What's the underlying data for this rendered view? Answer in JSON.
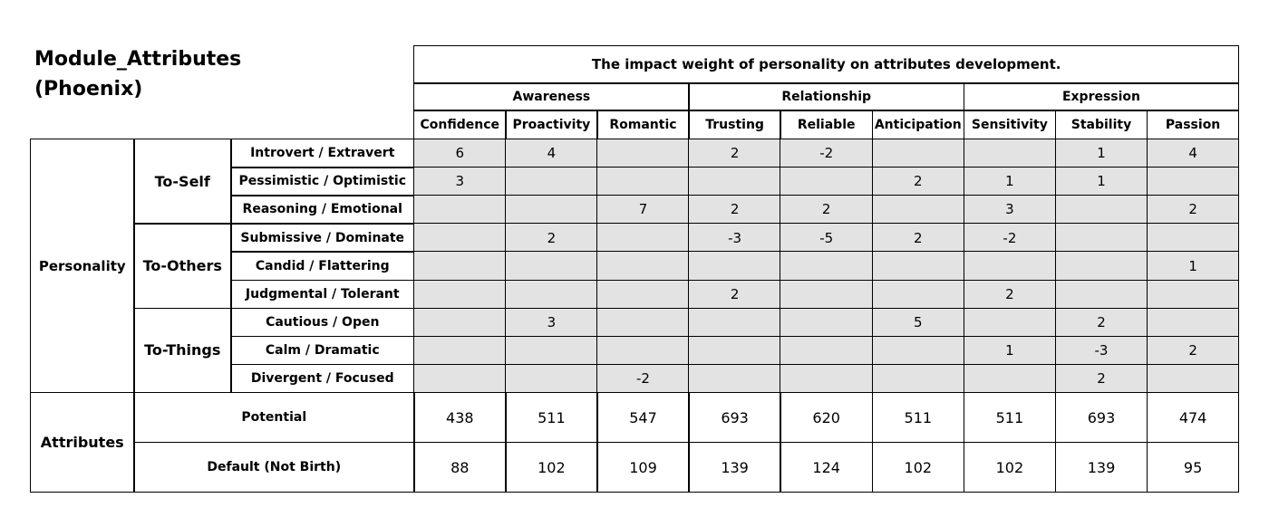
{
  "title": [
    "Module_Attributes",
    "(Phoenix)"
  ],
  "header": {
    "title": "The impact weight of personality on attributes development.",
    "groups": [
      {
        "name": "Awareness",
        "columns": [
          "Confidence",
          "Proactivity",
          "Romantic"
        ]
      },
      {
        "name": "Relationship",
        "columns": [
          "Trusting",
          "Reliable",
          "Anticipation"
        ]
      },
      {
        "name": "Expression",
        "columns": [
          "Sensitivity",
          "Stability",
          "Passion"
        ]
      }
    ]
  },
  "personality": {
    "label": "Personality",
    "groups": [
      {
        "name": "To-Self",
        "rows": [
          {
            "label": "Introvert / Extravert",
            "values": [
              6,
              4,
              null,
              2,
              -2,
              null,
              null,
              1,
              4
            ]
          },
          {
            "label": "Pessimistic / Optimistic",
            "values": [
              3,
              null,
              null,
              null,
              null,
              2,
              1,
              1,
              null
            ]
          },
          {
            "label": "Reasoning / Emotional",
            "values": [
              null,
              null,
              7,
              2,
              2,
              null,
              3,
              null,
              2
            ]
          }
        ]
      },
      {
        "name": "To-Others",
        "rows": [
          {
            "label": "Submissive / Dominate",
            "values": [
              null,
              2,
              null,
              -3,
              -5,
              2,
              -2,
              null,
              null
            ]
          },
          {
            "label": "Candid / Flattering",
            "values": [
              null,
              null,
              null,
              null,
              null,
              null,
              null,
              null,
              1
            ]
          },
          {
            "label": "Judgmental / Tolerant",
            "values": [
              null,
              null,
              null,
              2,
              null,
              null,
              2,
              null,
              null
            ]
          }
        ]
      },
      {
        "name": "To-Things",
        "rows": [
          {
            "label": "Cautious / Open",
            "values": [
              null,
              3,
              null,
              null,
              null,
              5,
              null,
              2,
              null
            ]
          },
          {
            "label": "Calm / Dramatic",
            "values": [
              null,
              null,
              null,
              null,
              null,
              null,
              1,
              -3,
              2
            ]
          },
          {
            "label": "Divergent / Focused",
            "values": [
              null,
              null,
              -2,
              null,
              null,
              null,
              null,
              2,
              null
            ]
          }
        ]
      }
    ]
  },
  "attributes": {
    "label": "Attributes",
    "rows": [
      {
        "label": "Potential",
        "values": [
          438,
          511,
          547,
          693,
          620,
          511,
          511,
          693,
          474
        ]
      },
      {
        "label": "Default (Not Birth)",
        "values": [
          88,
          102,
          109,
          139,
          124,
          102,
          102,
          139,
          95
        ]
      }
    ]
  }
}
